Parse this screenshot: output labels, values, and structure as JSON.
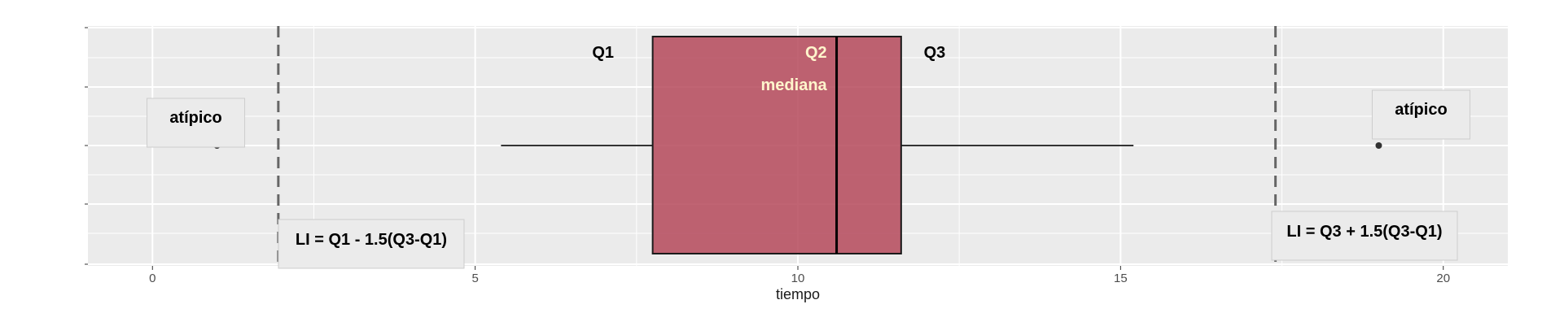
{
  "chart_data": {
    "type": "boxplot",
    "orientation": "horizontal",
    "xlabel": "tiempo",
    "xlim": [
      -1,
      21
    ],
    "x_ticks": [
      0,
      5,
      10,
      15,
      20
    ],
    "grid": true,
    "box": {
      "whisker_low": 5.4,
      "q1": 7.75,
      "median": 10.6,
      "q3": 11.6,
      "whisker_high": 15.2,
      "fill": "#b5495b",
      "fill_opacity": 0.85
    },
    "outliers": [
      {
        "x": 1.0,
        "label": "atípico"
      },
      {
        "x": 19.0,
        "label": "atípico"
      }
    ],
    "fences": [
      {
        "x": 1.95,
        "label": "LI = Q1 - 1.5(Q3-Q1)"
      },
      {
        "x": 17.4,
        "label": "LI = Q3 + 1.5(Q3-Q1)"
      }
    ],
    "annotations": [
      {
        "text": "Q1",
        "x": 7.15,
        "color": "#000000"
      },
      {
        "text": "Q2",
        "x": 10.45,
        "color": "#fff5cc"
      },
      {
        "text": "mediana",
        "x": 10.45,
        "color": "#fff5cc"
      },
      {
        "text": "Q3",
        "x": 11.95,
        "color": "#000000"
      }
    ],
    "colors": {
      "panel": "#ebebeb",
      "grid": "#ffffff",
      "text_dark": "#000000",
      "text_light": "#fff5cc"
    }
  }
}
